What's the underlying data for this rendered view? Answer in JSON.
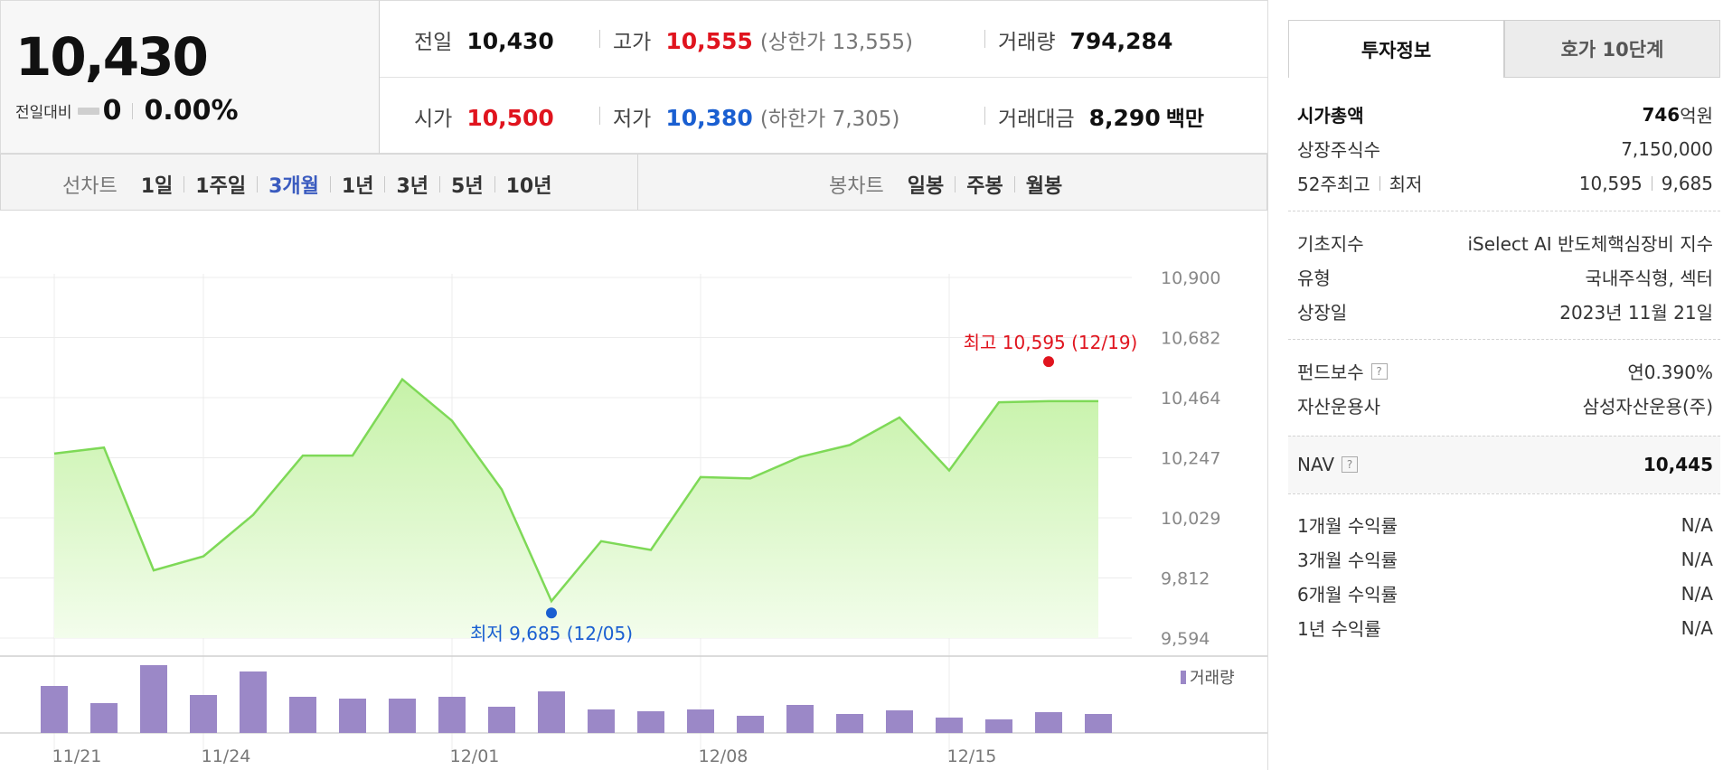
{
  "price": {
    "current": "10,430",
    "change_label": "전일대비",
    "change_value": "0",
    "change_pct": "0.00%"
  },
  "stats": {
    "prev_close": {
      "label": "전일",
      "value": "10,430"
    },
    "high": {
      "label": "고가",
      "value": "10,555",
      "limit": "(상한가 13,555)"
    },
    "volume": {
      "label": "거래량",
      "value": "794,284"
    },
    "open": {
      "label": "시가",
      "value": "10,500"
    },
    "low": {
      "label": "저가",
      "value": "10,380",
      "limit": "(하한가 7,305)"
    },
    "amount": {
      "label": "거래대금",
      "value": "8,290",
      "unit": "백만"
    }
  },
  "line_tabs": {
    "label": "선차트",
    "items": [
      "1일",
      "1주일",
      "3개월",
      "1년",
      "3년",
      "5년",
      "10년"
    ],
    "active": "3개월"
  },
  "candle_tabs": {
    "label": "봉차트",
    "items": [
      "일봉",
      "주봉",
      "월봉"
    ]
  },
  "colors": {
    "up": "#e0141e",
    "down": "#1a5fd1",
    "line": "#7ed957",
    "volume": "#9b88c7",
    "active_tab": "#3a5bbf"
  },
  "chart_data": {
    "type": "area",
    "y_ticks": [
      "10,900",
      "10,682",
      "10,464",
      "10,247",
      "10,029",
      "9,812",
      "9,594"
    ],
    "ylim": [
      9594,
      10900
    ],
    "x_ticks": [
      "11/21",
      "11/24",
      "12/01",
      "12/08",
      "12/15"
    ],
    "x_tick_index": [
      0,
      3,
      8,
      13,
      18
    ],
    "series": [
      {
        "values": [
          10262,
          10284,
          9839,
          9890,
          10040,
          10255,
          10255,
          10531,
          10381,
          10132,
          9728,
          9945,
          9913,
          10177,
          10172,
          10250,
          10293,
          10393,
          10201,
          10448,
          10452,
          10452
        ]
      }
    ],
    "max_annotation": {
      "label": "최고 10,595 (12/19)",
      "index": 20,
      "value": 10595
    },
    "min_annotation": {
      "label": "최저 9,685 (12/05)",
      "index": 10,
      "value": 9685
    },
    "volume": {
      "label": "거래량",
      "values": [
        52,
        33,
        75,
        42,
        68,
        40,
        38,
        38,
        40,
        29,
        46,
        26,
        24,
        26,
        19,
        31,
        21,
        25,
        17,
        15,
        23,
        21
      ]
    }
  },
  "info_tabs": {
    "active": "투자정보",
    "inactive": "호가 10단계"
  },
  "info": {
    "market_cap": {
      "label": "시가총액",
      "value": "746",
      "unit": "억원"
    },
    "shares": {
      "label": "상장주식수",
      "value": "7,150,000"
    },
    "week52": {
      "label_a": "52주최고",
      "label_b": "최저",
      "high": "10,595",
      "low": "9,685"
    },
    "index": {
      "label": "기초지수",
      "value": "iSelect AI 반도체핵심장비 지수"
    },
    "type": {
      "label": "유형",
      "value": "국내주식형, 섹터"
    },
    "listed": {
      "label": "상장일",
      "value": "2023년 11월 21일"
    },
    "fee": {
      "label": "펀드보수",
      "value": "연0.390%"
    },
    "manager": {
      "label": "자산운용사",
      "value": "삼성자산운용(주)"
    },
    "nav": {
      "label": "NAV",
      "value": "10,445"
    },
    "ret1m": {
      "label": "1개월 수익률",
      "value": "N/A"
    },
    "ret3m": {
      "label": "3개월 수익률",
      "value": "N/A"
    },
    "ret6m": {
      "label": "6개월 수익률",
      "value": "N/A"
    },
    "ret1y": {
      "label": "1년 수익률",
      "value": "N/A"
    },
    "help_glyph": "?"
  }
}
